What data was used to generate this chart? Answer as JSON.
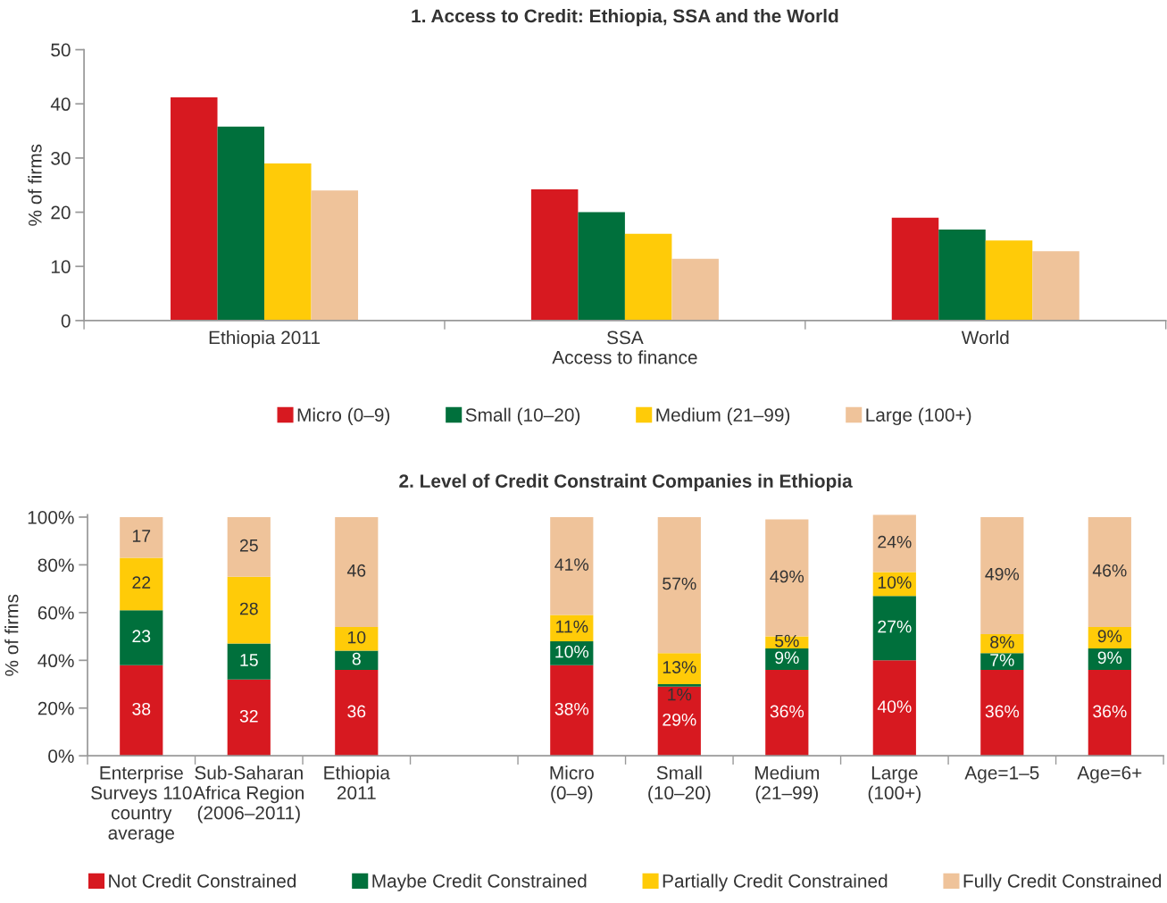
{
  "chart_data": [
    {
      "type": "bar",
      "title": "1. Access to Credit: Ethiopia, SSA and the World",
      "xlabel": "Access to finance",
      "ylabel": "% of firms",
      "categories": [
        "Ethiopia 2011",
        "SSA",
        "World"
      ],
      "series": [
        {
          "name": "Micro (0–9)",
          "color": "#d71920",
          "values": [
            41.2,
            24.2,
            19
          ]
        },
        {
          "name": "Small (10–20)",
          "color": "#00703c",
          "values": [
            35.8,
            20,
            16.8
          ]
        },
        {
          "name": "Medium (21–99)",
          "color": "#ffcb08",
          "values": [
            29,
            16,
            14.8
          ]
        },
        {
          "name": "Large (100+)",
          "color": "#efc39a",
          "values": [
            24,
            11.4,
            12.8
          ]
        }
      ],
      "ylim": [
        0,
        50
      ],
      "yticks": [
        0,
        10,
        20,
        30,
        40,
        50
      ],
      "grid": false,
      "legend": "bottom"
    },
    {
      "type": "bar",
      "stacked": true,
      "title": "2. Level of Credit Constraint Companies in Ethiopia",
      "ylabel": "% of firms",
      "categories": [
        "Enterprise\nSurveys 110\ncountry\naverage",
        "Sub-Saharan\nAfrica Region\n(2006–2011)",
        "Ethiopia\n2011",
        null,
        "Micro\n(0–9)",
        "Small\n(10–20)",
        "Medium\n(21–99)",
        "Large\n(100+)",
        "Age=1–5",
        "Age=6+"
      ],
      "series": [
        {
          "name": "Not Credit Constrained",
          "color": "#d71920",
          "values": [
            38,
            32,
            36,
            null,
            38,
            29,
            36,
            40,
            36,
            36
          ],
          "value_labels": [
            "38",
            "32",
            "36",
            null,
            "38%",
            "29%",
            "36%",
            "40%",
            "36%",
            "36%"
          ]
        },
        {
          "name": "Maybe Credit Constrained",
          "color": "#00703c",
          "values": [
            23,
            15,
            8,
            null,
            10,
            1,
            9,
            27,
            7,
            9
          ],
          "value_labels": [
            "23",
            "15",
            "8",
            null,
            "10%",
            "1%",
            "9%",
            "27%",
            "7%",
            "9%"
          ]
        },
        {
          "name": "Partially Credit Constrained",
          "color": "#ffcb08",
          "values": [
            22,
            28,
            10,
            null,
            11,
            13,
            5,
            10,
            8,
            9
          ],
          "value_labels": [
            "22",
            "28",
            "10",
            null,
            "11%",
            "13%",
            "5%",
            "10%",
            "8%",
            "9%"
          ]
        },
        {
          "name": "Fully Credit Constrained",
          "color": "#efc39a",
          "values": [
            17,
            25,
            46,
            null,
            41,
            57,
            49,
            24,
            49,
            46
          ],
          "value_labels": [
            "17",
            "25",
            "46",
            null,
            "41%",
            "57%",
            "49%",
            "24%",
            "49%",
            "46%"
          ]
        }
      ],
      "ylim": [
        0,
        101
      ],
      "yticks": [
        {
          "value": 0,
          "label": "0%"
        },
        {
          "value": 20,
          "label": "20%"
        },
        {
          "value": 40,
          "label": "40%"
        },
        {
          "value": 60,
          "label": "60%"
        },
        {
          "value": 80,
          "label": "80%"
        },
        {
          "value": 100,
          "label": "100%"
        }
      ],
      "grid": false,
      "legend": "bottom"
    }
  ]
}
